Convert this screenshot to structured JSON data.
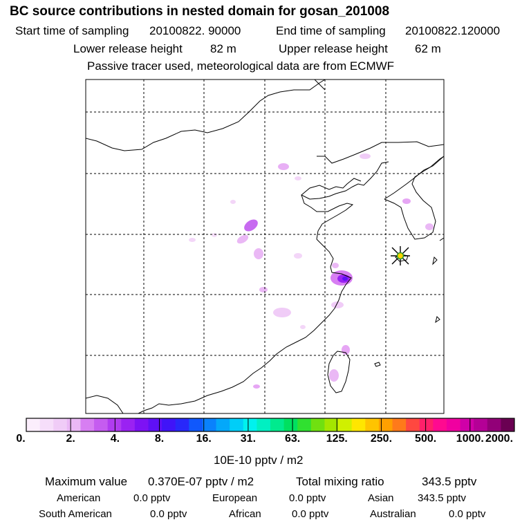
{
  "header": {
    "title": "BC  source contributions in nested domain for gosan_201008",
    "start_label": "Start time of sampling",
    "start_value": "20100822. 90000",
    "end_label": "End time of sampling",
    "end_value": "20100822.120000",
    "lower_label": "Lower release height",
    "lower_value": "82 m",
    "upper_label": "Upper release height",
    "upper_value": "62 m",
    "tracer_note": "Passive tracer used, meteorological data are from ECMWF"
  },
  "colorbar": {
    "colors": [
      "#fbeefc",
      "#f6defa",
      "#f0ccf7",
      "#eab8f5",
      "#d77ef2",
      "#c55cf0",
      "#b03cf0",
      "#9a22f2",
      "#7d12f4",
      "#5f10f6",
      "#4014f8",
      "#2828fa",
      "#1058fc",
      "#0a82fc",
      "#04a8fa",
      "#00cef8",
      "#00f2ee",
      "#00f0c2",
      "#00ea8e",
      "#00e060",
      "#30e030",
      "#70e010",
      "#a4e600",
      "#d0f000",
      "#ffe600",
      "#ffc400",
      "#ffa000",
      "#ff7a1a",
      "#ff4840",
      "#ff206a",
      "#ff0a90",
      "#f000a0",
      "#d000a8",
      "#b40096",
      "#920078",
      "#6a0052"
    ],
    "tick_labels": [
      "0.",
      "2.",
      "4.",
      "8.",
      "16.",
      "31.",
      "63.",
      "125.",
      "250.",
      "500.",
      "1000.",
      "2000."
    ],
    "unit": "10E-10 pptv / m2"
  },
  "stats": {
    "max_label": "Maximum value",
    "max_value": "0.370E-07 pptv / m2",
    "total_label": "Total mixing ratio",
    "total_value": "343.5 pptv"
  },
  "sources": [
    {
      "name": "American",
      "value": "0.0 pptv"
    },
    {
      "name": "European",
      "value": "0.0 pptv"
    },
    {
      "name": "Asian",
      "value": "343.5 pptv"
    },
    {
      "name": "South American",
      "value": "0.0 pptv"
    },
    {
      "name": "African",
      "value": "0.0 pptv"
    },
    {
      "name": "Australian",
      "value": "0.0 pptv"
    }
  ]
}
